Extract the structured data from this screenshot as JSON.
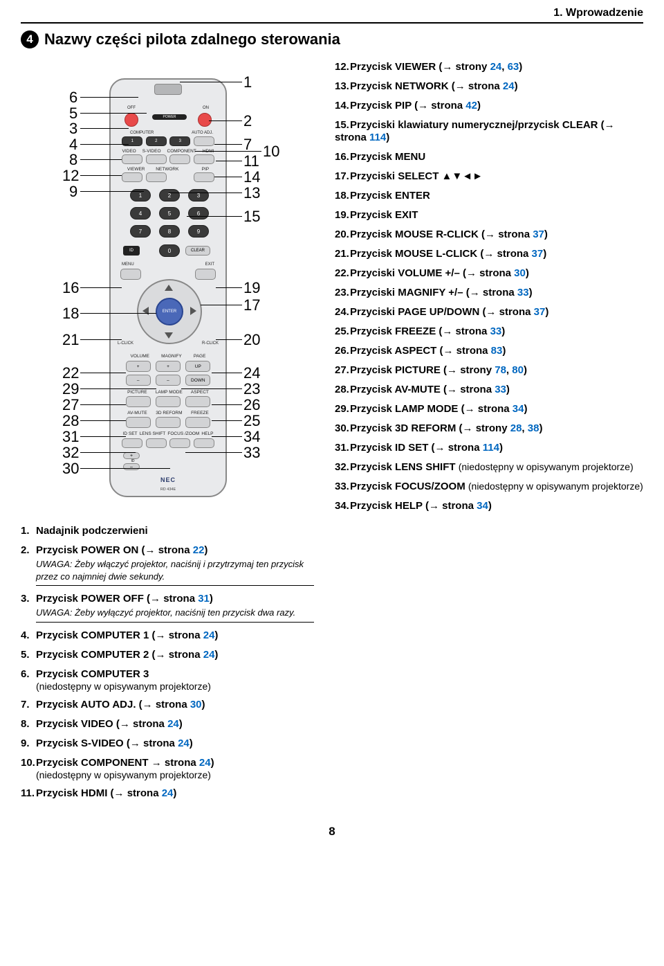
{
  "header": {
    "section": "1. Wprowadzenie"
  },
  "title": {
    "num": "4",
    "text": "Nazwy części pilota zdalnego sterowania"
  },
  "remote": {
    "power_off_lbl": "OFF",
    "power_on_lbl": "ON",
    "power_lbl": "POWER",
    "computer_lbl": "COMPUTER",
    "autoadj_lbl": "AUTO ADJ.",
    "video_lbl": "VIDEO",
    "svideo_lbl": "S-VIDEO",
    "component_lbl": "COMPONENT",
    "hdmi_lbl": "HDMI",
    "viewer_lbl": "VIEWER",
    "network_lbl": "NETWORK",
    "pip_lbl": "PIP",
    "id_lbl": "ID",
    "clear_lbl": "CLEAR",
    "menu_lbl": "MENU",
    "exit_lbl": "EXIT",
    "enter_lbl": "ENTER",
    "lclick_lbl": "L-CLICK",
    "rclick_lbl": "R-CLICK",
    "volume_lbl": "VOLUME",
    "magnify_lbl": "MAGNIFY",
    "page_lbl": "PAGE",
    "up_lbl": "UP",
    "down_lbl": "DOWN",
    "picture_lbl": "PICTURE",
    "lampmode_lbl": "LAMP MODE",
    "aspect_lbl": "ASPECT",
    "avmute_lbl": "AV-MUTE",
    "reform_lbl": "3D REFORM",
    "freeze_lbl": "FREEZE",
    "idset_lbl": "ID SET",
    "lensshift_lbl": "LENS SHIFT",
    "focuszoom_lbl": "FOCUS /ZOOM",
    "help_lbl": "HELP",
    "id2_lbl": "ID",
    "logo": "NEC",
    "model": "RD 434E",
    "n1": "1",
    "n2": "2",
    "n3": "3",
    "n4": "4",
    "n5": "5",
    "n6": "6",
    "n7": "7",
    "n8": "8",
    "n9": "9",
    "n0": "0"
  },
  "callouts_left": [
    "6",
    "5",
    "3",
    "4",
    "8",
    "12",
    "9",
    "16",
    "18",
    "21",
    "22",
    "29",
    "27",
    "28",
    "31",
    "32",
    "30"
  ],
  "callouts_right": [
    "1",
    "2",
    "7",
    "10",
    "11",
    "14",
    "13",
    "15",
    "19",
    "17",
    "20",
    "24",
    "23",
    "26",
    "25",
    "34",
    "33"
  ],
  "left_list": [
    {
      "n": "1.",
      "t": "Nadajnik podczerwieni"
    },
    {
      "n": "2.",
      "t": "Przycisk POWER ON (→ strona ",
      "p": "22",
      "t2": ")",
      "note": "UWAGA: Żeby włączyć projektor, naciśnij i przytrzymaj ten przycisk przez co najmniej dwie sekundy."
    },
    {
      "n": "3.",
      "t": "Przycisk POWER OFF (→ strona ",
      "p": "31",
      "t2": ")",
      "note": "UWAGA: Żeby wyłączyć projektor, naciśnij ten przycisk dwa razy."
    },
    {
      "n": "4.",
      "t": "Przycisk COMPUTER 1 (→ strona ",
      "p": "24",
      "t2": ")"
    },
    {
      "n": "5.",
      "t": "Przycisk COMPUTER 2 (→ strona ",
      "p": "24",
      "t2": ")"
    },
    {
      "n": "6.",
      "t": "Przycisk COMPUTER 3",
      "sub": "(niedostępny w opisywanym projektorze)"
    },
    {
      "n": "7.",
      "t": "Przycisk AUTO ADJ. (→ strona ",
      "p": "30",
      "t2": ")"
    },
    {
      "n": "8.",
      "t": "Przycisk VIDEO (→ strona ",
      "p": "24",
      "t2": ")"
    },
    {
      "n": "9.",
      "t": "Przycisk S-VIDEO (→ strona ",
      "p": "24",
      "t2": ")"
    },
    {
      "n": "10.",
      "t": "Przycisk COMPONENT → strona ",
      "p": "24",
      "t2": ")",
      "sub": "(niedostępny w opisywanym projektorze)"
    },
    {
      "n": "11.",
      "t": "Przycisk HDMI (→ strona ",
      "p": "24",
      "t2": ")"
    }
  ],
  "right_list": [
    {
      "n": "12.",
      "t": "Przycisk VIEWER (→ strony ",
      "p": "24",
      "t2": ", ",
      "p2": "63",
      "t3": ")"
    },
    {
      "n": "13.",
      "t": "Przycisk NETWORK (→ strona ",
      "p": "24",
      "t2": ")"
    },
    {
      "n": "14.",
      "t": "Przycisk PIP (→ strona ",
      "p": "42",
      "t2": ")"
    },
    {
      "n": "15.",
      "t": "Przyciski klawiatury numerycznej/przycisk CLEAR (→ strona ",
      "p": "114",
      "t2": ")"
    },
    {
      "n": "16.",
      "t": "Przycisk MENU"
    },
    {
      "n": "17.",
      "t": "Przyciski SELECT ▲▼◄►"
    },
    {
      "n": "18.",
      "t": "Przycisk ENTER"
    },
    {
      "n": "19.",
      "t": "Przycisk EXIT"
    },
    {
      "n": "20.",
      "t": "Przycisk MOUSE R-CLICK (→ strona ",
      "p": "37",
      "t2": ")"
    },
    {
      "n": "21.",
      "t": "Przycisk MOUSE L-CLICK (→ strona ",
      "p": "37",
      "t2": ")"
    },
    {
      "n": "22.",
      "t": "Przyciski VOLUME +/– (→ strona ",
      "p": "30",
      "t2": ")"
    },
    {
      "n": "23.",
      "t": "Przyciski MAGNIFY +/– (→ strona ",
      "p": "33",
      "t2": ")"
    },
    {
      "n": "24.",
      "t": "Przyciski PAGE UP/DOWN (→ strona ",
      "p": "37",
      "t2": ")"
    },
    {
      "n": "25.",
      "t": "Przycisk FREEZE (→ strona ",
      "p": "33",
      "t2": ")"
    },
    {
      "n": "26.",
      "t": "Przycisk ASPECT (→ strona ",
      "p": "83",
      "t2": ")"
    },
    {
      "n": "27.",
      "t": "Przycisk PICTURE (→ strony ",
      "p": "78",
      "t2": ", ",
      "p2": "80",
      "t3": ")"
    },
    {
      "n": "28.",
      "t": "Przycisk AV-MUTE (→ strona ",
      "p": "33",
      "t2": ")"
    },
    {
      "n": "29.",
      "t": "Przycisk LAMP MODE (→ strona ",
      "p": "34",
      "t2": ")"
    },
    {
      "n": "30.",
      "t": "Przycisk 3D REFORM (→ strony ",
      "p": "28",
      "t2": ", ",
      "p2": "38",
      "t3": ")"
    },
    {
      "n": "31.",
      "t": "Przycisk ID SET (→ strona ",
      "p": "114",
      "t2": ")"
    },
    {
      "n": "32.",
      "t": "Przycisk LENS SHIFT ",
      "trail": "(niedostępny w opisywanym projektorze)"
    },
    {
      "n": "33.",
      "t": "Przycisk FOCUS/ZOOM ",
      "trail": "(niedostępny w opisywanym projektorze)"
    },
    {
      "n": "34.",
      "t": "Przycisk HELP (→ strona ",
      "p": "34",
      "t2": ")"
    }
  ],
  "page_num": "8"
}
